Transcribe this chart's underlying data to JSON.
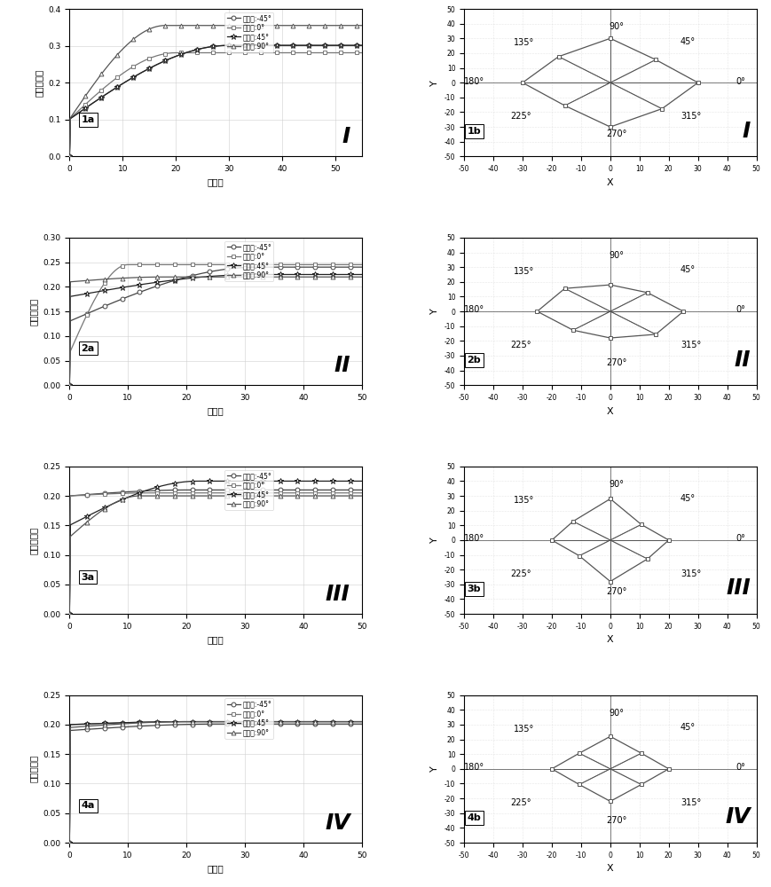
{
  "panels": [
    {
      "label_a": "1a",
      "label_b": "1b",
      "roman": "I",
      "ylim_a": [
        0.0,
        0.4
      ],
      "yticks_a": [
        0.0,
        0.1,
        0.2,
        0.3,
        0.4
      ],
      "xlim_a": [
        0,
        55
      ],
      "curves": [
        {
          "sill": 0.301,
          "range": 30,
          "nugget": 0.101,
          "color": "#555555",
          "marker": "o"
        },
        {
          "sill": 0.281,
          "range": 20,
          "nugget": 0.101,
          "color": "#888888",
          "marker": "s"
        },
        {
          "sill": 0.301,
          "range": 30,
          "nugget": 0.101,
          "color": "#333333",
          "marker": "*"
        },
        {
          "sill": 0.355,
          "range": 18,
          "nugget": 0.101,
          "color": "#666666",
          "marker": "^"
        }
      ],
      "rose_r": [
        30,
        22,
        30,
        25,
        30,
        22,
        30,
        25
      ]
    },
    {
      "label_a": "2a",
      "label_b": "2b",
      "roman": "II",
      "ylim_a": [
        0.0,
        0.3
      ],
      "yticks_a": [
        0.0,
        0.05,
        0.1,
        0.15,
        0.2,
        0.25,
        0.3
      ],
      "xlim_a": [
        0,
        50
      ],
      "curves": [
        {
          "sill": 0.24,
          "range": 32,
          "nugget": 0.13,
          "color": "#555555",
          "marker": "o"
        },
        {
          "sill": 0.245,
          "range": 10,
          "nugget": 0.065,
          "color": "#888888",
          "marker": "s"
        },
        {
          "sill": 0.225,
          "range": 32,
          "nugget": 0.18,
          "color": "#333333",
          "marker": "*"
        },
        {
          "sill": 0.22,
          "range": 16,
          "nugget": 0.21,
          "color": "#666666",
          "marker": "^"
        }
      ],
      "rose_r": [
        25,
        18,
        18,
        22,
        25,
        18,
        18,
        22
      ]
    },
    {
      "label_a": "3a",
      "label_b": "3b",
      "roman": "III",
      "ylim_a": [
        0.0,
        0.25
      ],
      "yticks_a": [
        0.0,
        0.05,
        0.1,
        0.15,
        0.2,
        0.25
      ],
      "xlim_a": [
        0,
        50
      ],
      "curves": [
        {
          "sill": 0.21,
          "range": 20,
          "nugget": 0.2,
          "color": "#555555",
          "marker": "o"
        },
        {
          "sill": 0.205,
          "range": 14,
          "nugget": 0.2,
          "color": "#888888",
          "marker": "s"
        },
        {
          "sill": 0.225,
          "range": 22,
          "nugget": 0.15,
          "color": "#333333",
          "marker": "*"
        },
        {
          "sill": 0.2,
          "range": 12,
          "nugget": 0.13,
          "color": "#666666",
          "marker": "^"
        }
      ],
      "rose_r": [
        20,
        15,
        28,
        18,
        20,
        15,
        28,
        18
      ]
    },
    {
      "label_a": "4a",
      "label_b": "4b",
      "roman": "IV",
      "ylim_a": [
        0.0,
        0.25
      ],
      "yticks_a": [
        0.0,
        0.05,
        0.1,
        0.15,
        0.2,
        0.25
      ],
      "xlim_a": [
        0,
        50
      ],
      "curves": [
        {
          "sill": 0.201,
          "range": 25,
          "nugget": 0.19,
          "color": "#555555",
          "marker": "o"
        },
        {
          "sill": 0.205,
          "range": 20,
          "nugget": 0.2,
          "color": "#888888",
          "marker": "s"
        },
        {
          "sill": 0.205,
          "range": 20,
          "nugget": 0.2,
          "color": "#333333",
          "marker": "*"
        },
        {
          "sill": 0.205,
          "range": 20,
          "nugget": 0.195,
          "color": "#666666",
          "marker": "^"
        }
      ],
      "rose_r": [
        20,
        15,
        22,
        15,
        20,
        15,
        22,
        15
      ]
    }
  ],
  "legend_labels": [
    "方位角:-45°",
    "方位角:0°",
    "方位角:45°",
    "方位角:90°"
  ],
  "ylabel_a": "变差函数値",
  "xlabel_a": "滞后距",
  "xlabel_b": "X",
  "ylabel_b": "Y",
  "rose_angles_deg": [
    0,
    45,
    90,
    135,
    180,
    225,
    270,
    315
  ],
  "rose_xlim": [
    -50,
    50
  ],
  "rose_ylim": [
    -50,
    50
  ],
  "rose_xticks": [
    -50,
    -40,
    -30,
    -20,
    -10,
    0,
    10,
    20,
    30,
    40,
    50
  ],
  "rose_yticks": [
    -50,
    -40,
    -30,
    -20,
    -10,
    0,
    10,
    20,
    30,
    40,
    50
  ]
}
